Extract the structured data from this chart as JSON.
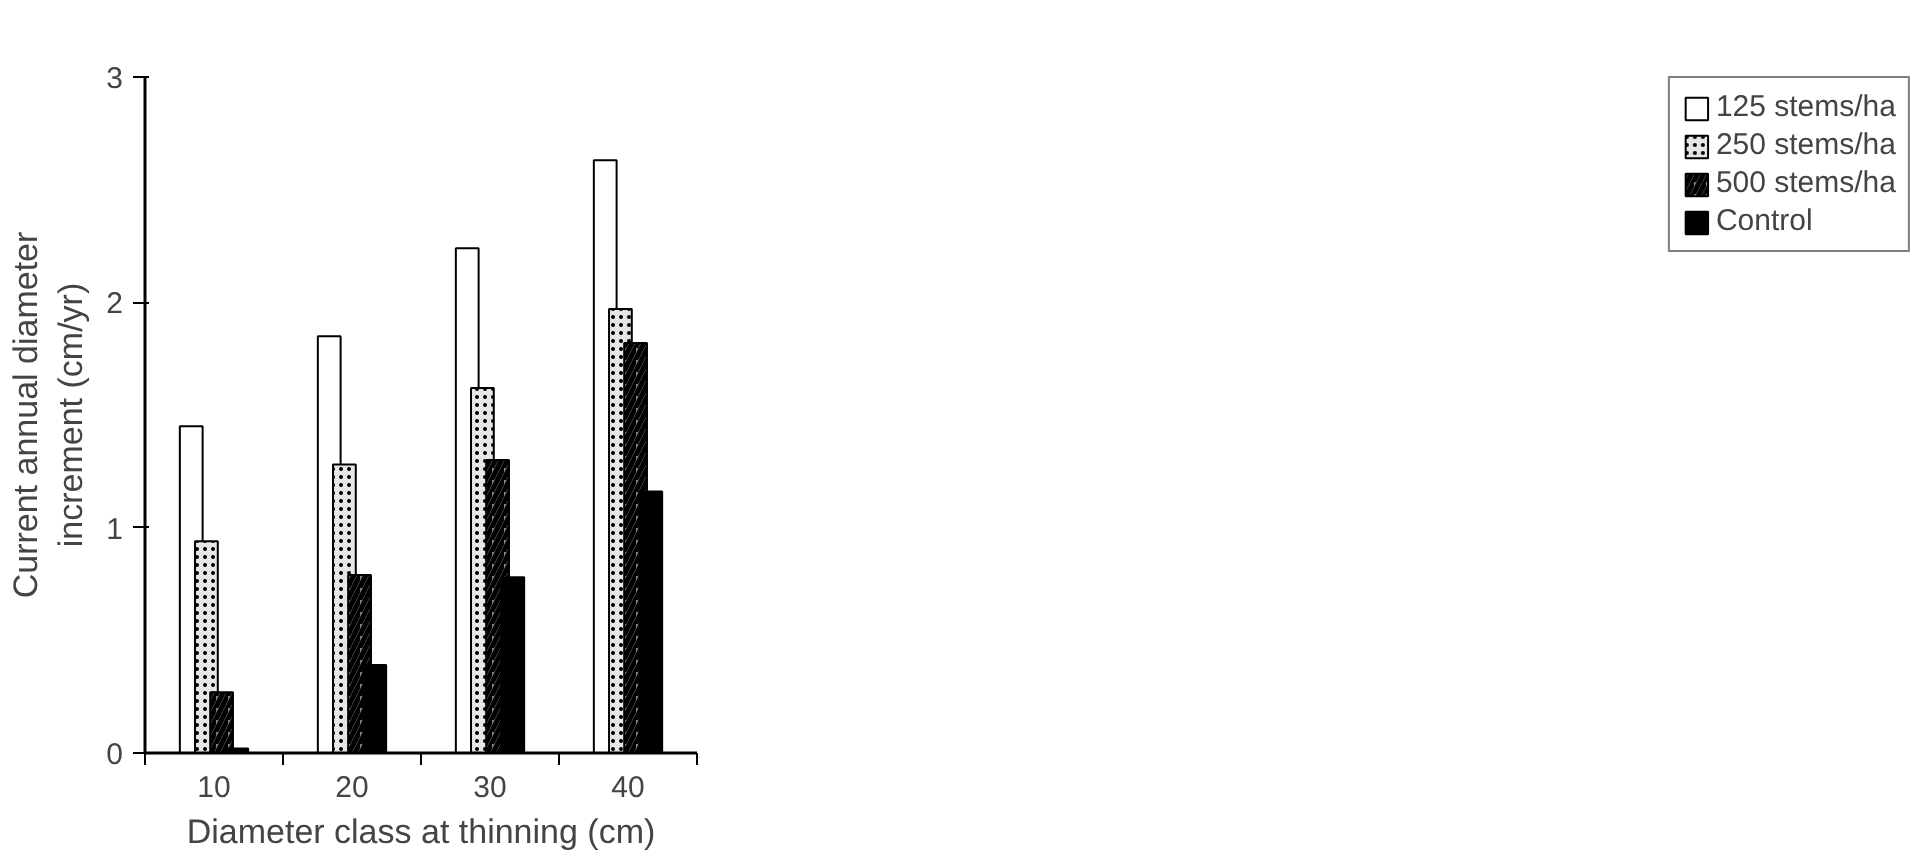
{
  "chart_data": {
    "type": "bar",
    "xlabel": "Diameter class at thinning (cm)",
    "ylabel": "Current annual diameter\nincrement (cm/yr)",
    "categories": [
      "10",
      "20",
      "30",
      "40"
    ],
    "series": [
      {
        "name": "125 stems/ha",
        "color": "#ffffff",
        "values": [
          1.45,
          1.85,
          2.24,
          2.63
        ]
      },
      {
        "name": "250 stems/ha",
        "color": "#e6e6e6",
        "values": [
          0.94,
          1.28,
          1.62,
          1.97
        ]
      },
      {
        "name": "500 stems/ha",
        "color": "#808080",
        "values": [
          0.27,
          0.79,
          1.3,
          1.82
        ]
      },
      {
        "name": "Control",
        "color": "#000000",
        "values": [
          0.02,
          0.39,
          0.78,
          1.16
        ]
      }
    ],
    "ylim": [
      0,
      3
    ],
    "yticks": [
      0,
      1,
      2,
      3
    ],
    "grid": false,
    "legend": "top right"
  }
}
